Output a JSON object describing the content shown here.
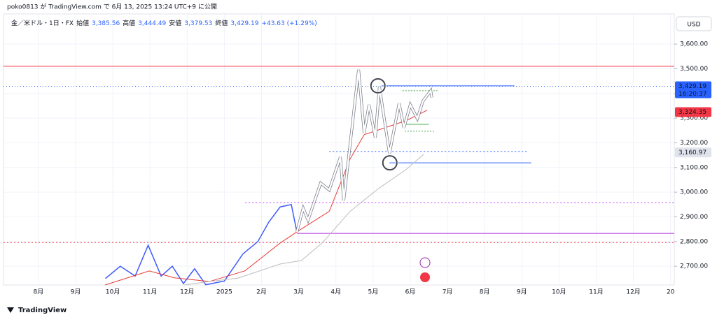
{
  "chart_data": {
    "type": "line",
    "caption": "poko0813 が TradingView.com で 6月 13, 2025 13:24 UTC+9 に公開",
    "symbol": "金／米ドル・1日・FX",
    "ohlc": [
      {
        "name": "始値",
        "value": "3,385.56"
      },
      {
        "name": "高値",
        "value": "3,444.49"
      },
      {
        "name": "安値",
        "value": "3,379.53"
      },
      {
        "name": "終値",
        "value": "3,429.19"
      }
    ],
    "change": "+43.63 (+1.29%)",
    "currency": "USD",
    "brand": "TradingView",
    "countdown": "16:20:37",
    "xlim": [
      0.06,
      18.1
    ],
    "ylim": [
      2624,
      3722
    ],
    "xticks": [
      {
        "value": 1,
        "label": "8月"
      },
      {
        "value": 2,
        "label": "9月"
      },
      {
        "value": 3,
        "label": "10月"
      },
      {
        "value": 4,
        "label": "11月"
      },
      {
        "value": 5,
        "label": "12月"
      },
      {
        "value": 6,
        "label": "2025"
      },
      {
        "value": 7,
        "label": "2月"
      },
      {
        "value": 8,
        "label": "3月"
      },
      {
        "value": 9,
        "label": "4月"
      },
      {
        "value": 10,
        "label": "5月"
      },
      {
        "value": 11,
        "label": "6月"
      },
      {
        "value": 12,
        "label": "7月"
      },
      {
        "value": 13,
        "label": "8月"
      },
      {
        "value": 14,
        "label": "9月"
      },
      {
        "value": 15,
        "label": "10月"
      },
      {
        "value": 16,
        "label": "11月"
      },
      {
        "value": 17,
        "label": "12月"
      },
      {
        "value": 18,
        "label": "20"
      }
    ],
    "yticks": [
      {
        "value": 2700,
        "label": "2,700.00"
      },
      {
        "value": 2800,
        "label": "2,800.00"
      },
      {
        "value": 2900,
        "label": "2,900.00"
      },
      {
        "value": 3000,
        "label": "3,000.00"
      },
      {
        "value": 3100,
        "label": "3,100.00"
      },
      {
        "value": 3200,
        "label": "3,200.00"
      },
      {
        "value": 3300,
        "label": "3,300.00"
      },
      {
        "value": 3400,
        "label": "3,400.00"
      },
      {
        "value": 3500,
        "label": "3,500.00"
      },
      {
        "value": 3600,
        "label": "3,600.00"
      }
    ],
    "grid": true,
    "series": [
      {
        "color": "#3d5afe",
        "width": 1.5,
        "x": [
          2.8,
          3.2,
          3.6,
          3.95,
          4.3,
          4.6,
          4.9,
          5.2,
          5.5,
          6.0,
          6.5,
          6.9,
          7.2,
          7.5,
          7.8,
          7.95
        ],
        "values": [
          2650,
          2700,
          2660,
          2785,
          2660,
          2700,
          2630,
          2690,
          2625,
          2640,
          2750,
          2800,
          2880,
          2940,
          2950,
          2839
        ]
      },
      {
        "color": "#e53935",
        "width": 1,
        "x": [
          2.79,
          3.98,
          4.66,
          5.6,
          6.55,
          7.5,
          8.07,
          8.82,
          9.38,
          9.76,
          10.32,
          10.89,
          11.45
        ],
        "values": [
          2624,
          2681,
          2653,
          2638,
          2681,
          2794,
          2851,
          2922,
          3134,
          3233,
          3261,
          3290,
          3332
        ]
      },
      {
        "color": "#bdbdbd",
        "width": 1,
        "x": [
          4.92,
          5.6,
          6.37,
          7.5,
          8.07,
          8.63,
          9.38,
          10.13,
          10.89,
          11.36
        ],
        "values": [
          2624,
          2638,
          2652,
          2709,
          2723,
          2794,
          2922,
          3013,
          3092,
          3154
        ]
      },
      {
        "color": "#ffffff",
        "width": 2.5,
        "x": [
          7.95,
          8.12,
          8.25,
          8.59,
          8.82,
          9.12,
          9.21,
          9.61,
          9.76,
          9.89,
          10.06,
          10.17,
          10.44,
          10.7,
          10.83,
          11.0,
          11.19,
          11.34,
          11.55,
          11.58
        ],
        "values": [
          2839,
          2935,
          2887,
          3037,
          3009,
          3142,
          2966,
          3496,
          3241,
          3354,
          3221,
          3428,
          3156,
          3360,
          3261,
          3354,
          3298,
          3369,
          3411,
          3383
        ]
      }
    ],
    "hlines": [
      {
        "value": 3510,
        "x": [
          0.06,
          18.1
        ],
        "color": "#f23645",
        "dash": "none"
      },
      {
        "value": 3429,
        "x": [
          0.06,
          18.1
        ],
        "color": "#2962ff",
        "dash": "1 3"
      },
      {
        "value": 3431,
        "x": [
          10.23,
          13.8
        ],
        "color": "#2962ff",
        "dash": "none"
      },
      {
        "value": 3119,
        "x": [
          10.44,
          14.25
        ],
        "color": "#2962ff",
        "dash": "none"
      },
      {
        "value": 3165,
        "x": [
          8.82,
          14.18
        ],
        "color": "#2962ff",
        "dash": "2 3"
      },
      {
        "value": 2958,
        "x": [
          6.56,
          18.1
        ],
        "color": "#c040ff",
        "dash": "2 3"
      },
      {
        "value": 2833,
        "x": [
          7.95,
          18.1
        ],
        "color": "#b030e0",
        "dash": "none"
      },
      {
        "value": 2796,
        "x": [
          0.06,
          18.1
        ],
        "color": "#f23645",
        "dash": "2 3"
      },
      {
        "value": 3411,
        "x": [
          10.79,
          11.73
        ],
        "color": "#4caf50",
        "dash": "2 2"
      },
      {
        "value": 3247,
        "x": [
          10.85,
          11.68
        ],
        "color": "#4caf50",
        "dash": "2 2"
      },
      {
        "value": 3275,
        "x": [
          10.85,
          11.5
        ],
        "color": "#4caf50",
        "dash": "none"
      }
    ],
    "circles": [
      {
        "x": 10.13,
        "value": 3431
      },
      {
        "x": 10.45,
        "value": 3119
      }
    ],
    "price_labels": [
      {
        "value": 3429.19,
        "label": "3,429.19",
        "color": "#2962ff"
      },
      {
        "value": 3324.35,
        "label": "3,324.35",
        "color": "#f23645"
      },
      {
        "value": 3160.97,
        "label": "3,160.97",
        "color": "#e0e3eb"
      }
    ]
  }
}
